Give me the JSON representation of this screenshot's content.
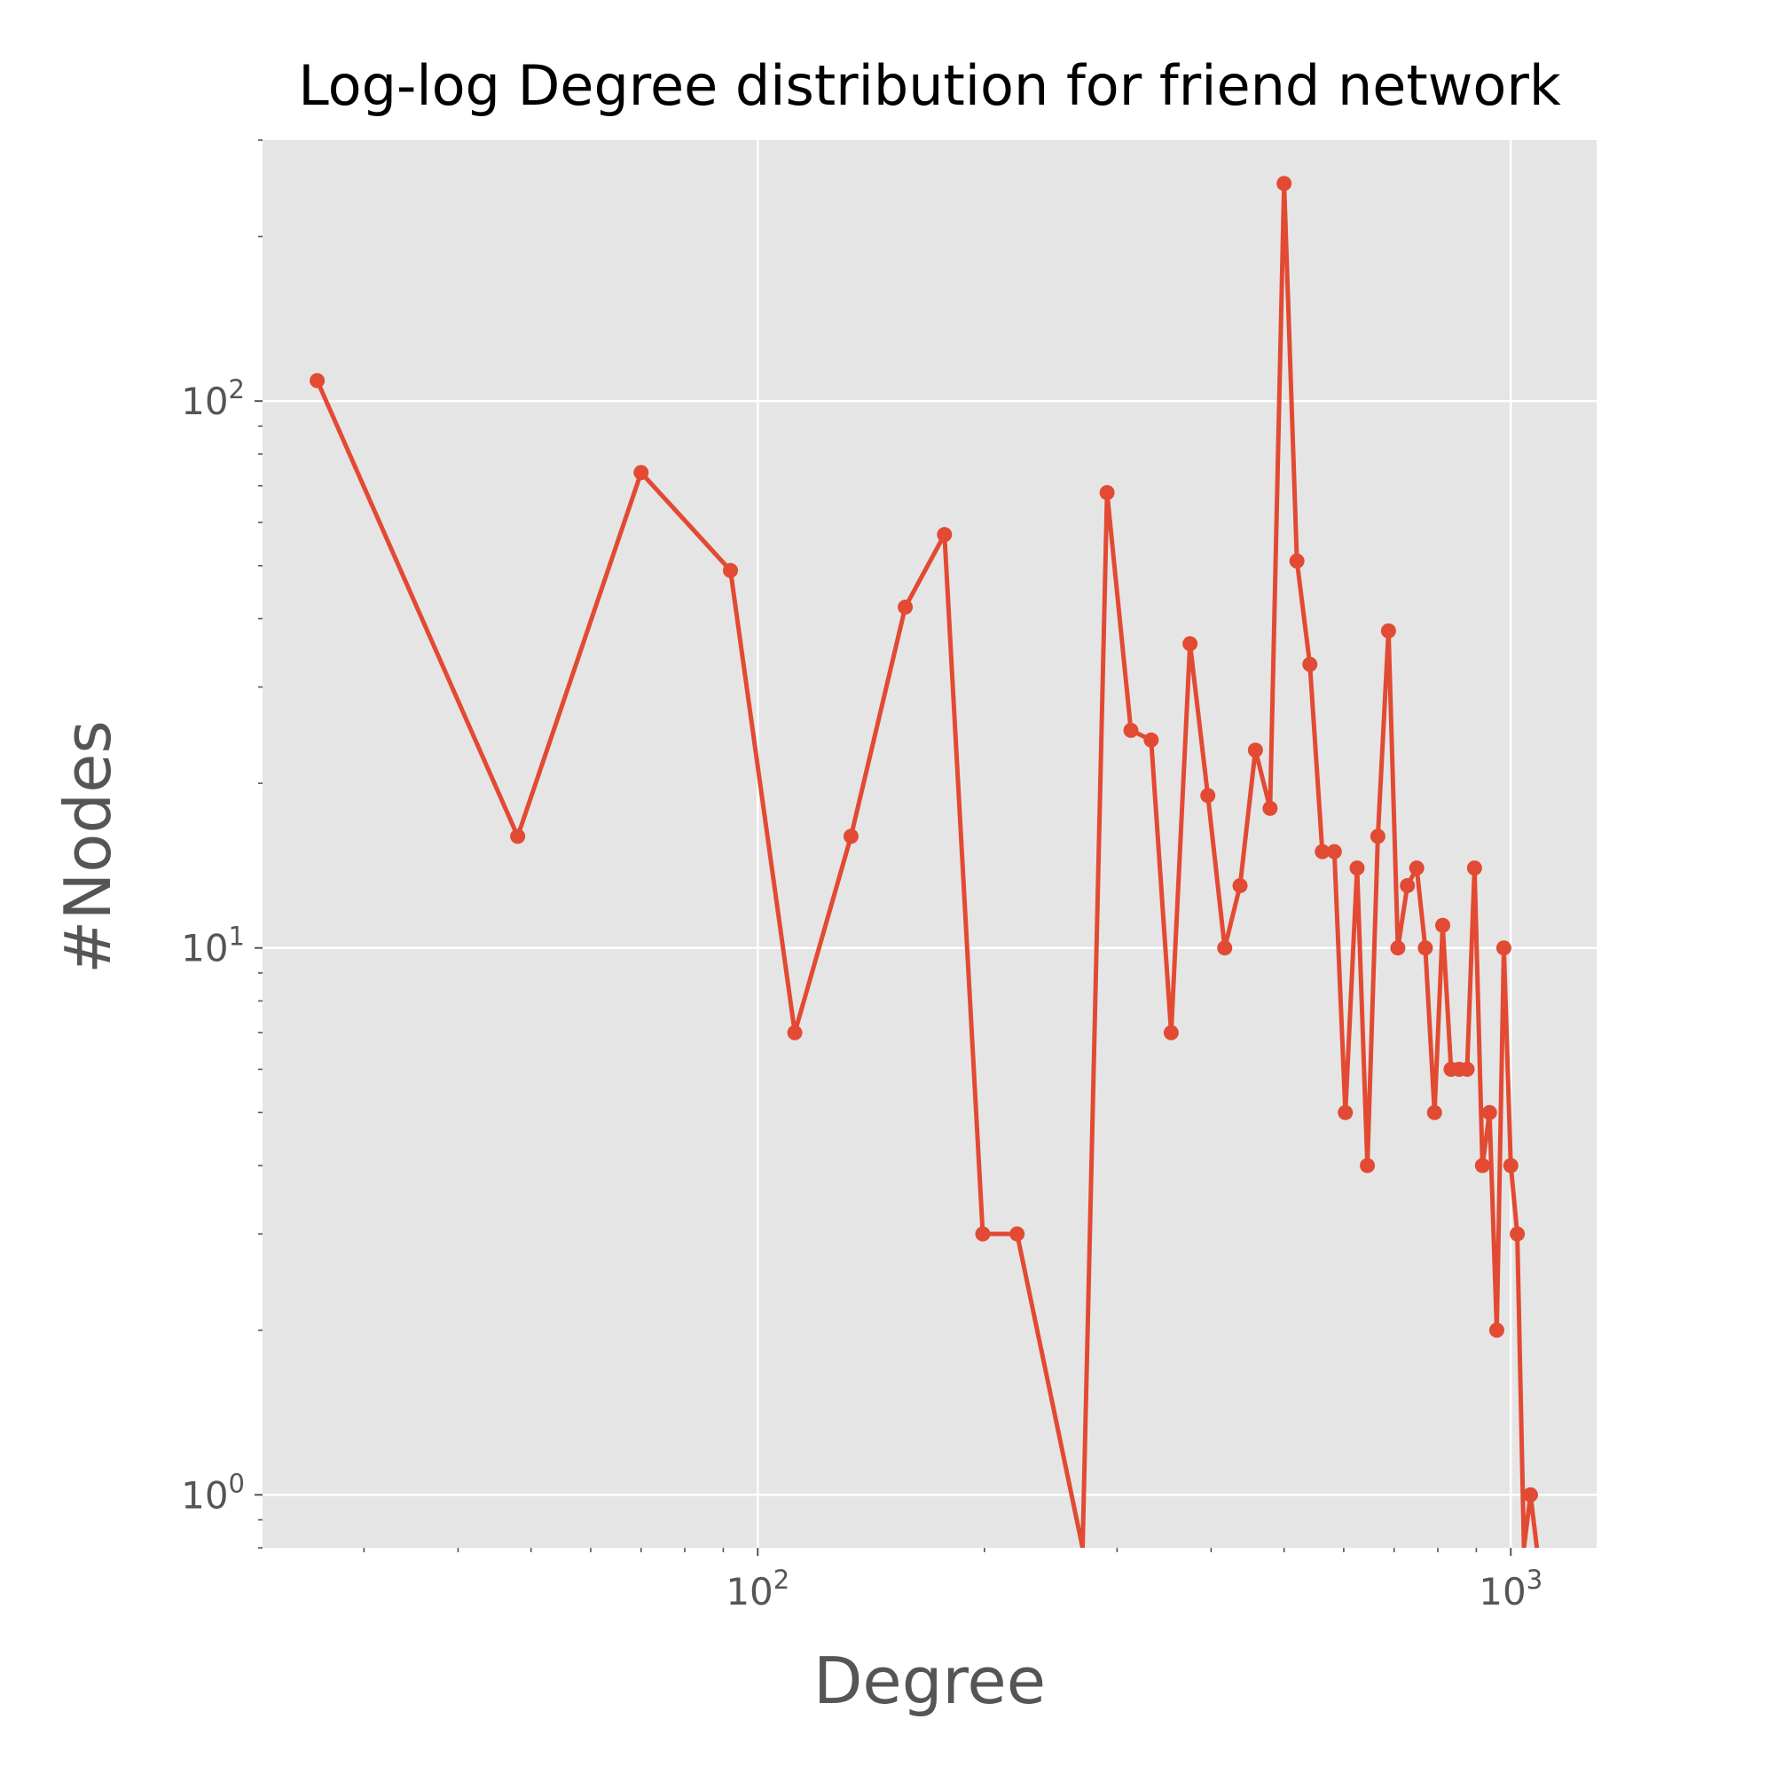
{
  "chart_data": {
    "type": "line",
    "title": "Log-log Degree distribution for friend network",
    "xlabel": "Degree",
    "ylabel": "#Nodes",
    "xscale": "log",
    "yscale": "log",
    "xlim": [
      22,
      1300
    ],
    "ylim": [
      0.8,
      300
    ],
    "grid": true,
    "style": "ggplot",
    "line_color": "#E24A33",
    "x_ticks": [
      {
        "value": 100,
        "base": "10",
        "exp": "2"
      },
      {
        "value": 1000,
        "base": "10",
        "exp": "3"
      }
    ],
    "y_ticks": [
      {
        "value": 1,
        "base": "10",
        "exp": "0"
      },
      {
        "value": 10,
        "base": "10",
        "exp": "1"
      },
      {
        "value": 100,
        "base": "10",
        "exp": "2"
      }
    ],
    "series": [
      {
        "x": [
          26,
          48,
          70,
          92,
          112,
          133,
          157,
          177,
          199,
          221,
          270,
          291,
          313,
          333,
          354,
          375,
          396,
          417,
          437,
          458,
          479,
          500,
          520,
          541,
          562,
          583,
          603,
          625,
          645,
          666,
          688,
          708,
          729,
          750,
          770,
          792,
          812,
          833,
          854,
          875,
          895,
          917,
          937,
          958,
          979,
          1000,
          1020,
          1041,
          1062,
          1083
        ],
        "y": [
          109,
          16,
          74,
          49,
          7,
          16,
          42,
          57,
          3,
          3,
          0.8,
          68,
          25,
          24,
          7,
          36,
          19,
          10,
          13,
          23,
          18,
          250,
          51,
          33,
          15,
          15,
          5,
          14,
          4,
          16,
          38,
          10,
          13,
          14,
          10,
          5,
          11,
          6,
          6,
          6,
          14,
          4,
          5,
          2,
          10,
          4,
          3,
          0.8,
          1,
          0.8
        ]
      }
    ]
  }
}
